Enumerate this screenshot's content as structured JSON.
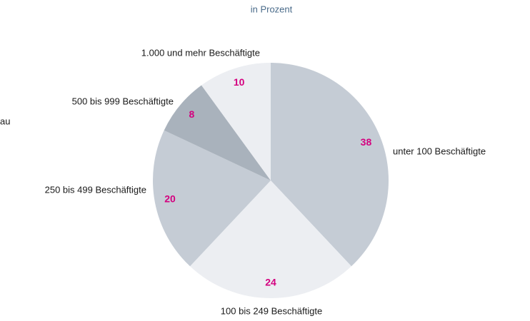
{
  "chart_data": {
    "type": "pie",
    "subtitle": "in Prozent",
    "annotations": [
      "au"
    ],
    "categories": [
      "unter 100 Beschäftigte",
      "100 bis 249 Beschäftigte",
      "250 bis 499 Beschäftigte",
      "500 bis 999 Beschäftigte",
      "1.000 und mehr Beschäftigte"
    ],
    "values": [
      38,
      24,
      20,
      8,
      10
    ],
    "colors": [
      "#c5ccd5",
      "#eceef2",
      "#c5ccd5",
      "#a9b2bc",
      "#eceef2"
    ]
  }
}
